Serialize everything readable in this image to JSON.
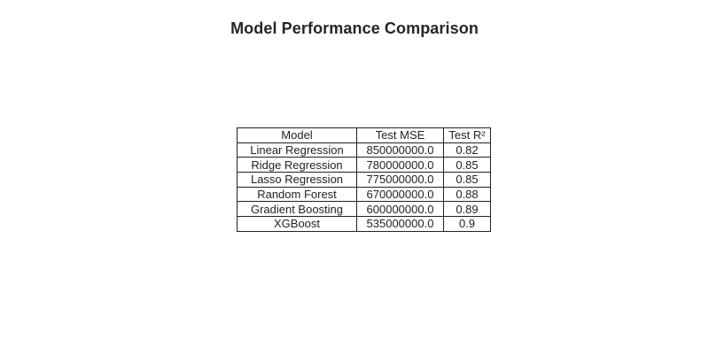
{
  "chart_data": {
    "type": "table",
    "title": "Model Performance Comparison",
    "columns": [
      "Model",
      "Test MSE",
      "Test R²"
    ],
    "rows": [
      [
        "Linear Regression",
        "850000000.0",
        "0.82"
      ],
      [
        "Ridge Regression",
        "780000000.0",
        "0.85"
      ],
      [
        "Lasso Regression",
        "775000000.0",
        "0.85"
      ],
      [
        "Random Forest",
        "670000000.0",
        "0.88"
      ],
      [
        "Gradient Boosting",
        "600000000.0",
        "0.89"
      ],
      [
        "XGBoost",
        "535000000.0",
        "0.9"
      ]
    ]
  }
}
